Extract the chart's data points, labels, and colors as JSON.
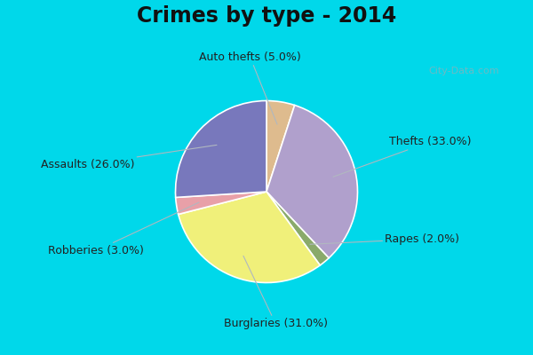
{
  "title": "Crimes by type - 2014",
  "title_fontsize": 17,
  "title_fontweight": "bold",
  "slices": [
    {
      "label": "Auto thefts",
      "pct": 5.0,
      "color": "#debb8e"
    },
    {
      "label": "Thefts",
      "pct": 33.0,
      "color": "#b0a0cc"
    },
    {
      "label": "Rapes",
      "pct": 2.0,
      "color": "#8aaa6a"
    },
    {
      "label": "Burglaries",
      "pct": 31.0,
      "color": "#f0f07a"
    },
    {
      "label": "Robberies",
      "pct": 3.0,
      "color": "#e8a0a8"
    },
    {
      "label": "Assaults",
      "pct": 26.0,
      "color": "#7878bc"
    }
  ],
  "background_cyan": "#00d8ea",
  "background_green": "#cce8d4",
  "label_fontsize": 9,
  "label_color": "#222222",
  "startangle": 90,
  "watermark": "City-Data.com"
}
